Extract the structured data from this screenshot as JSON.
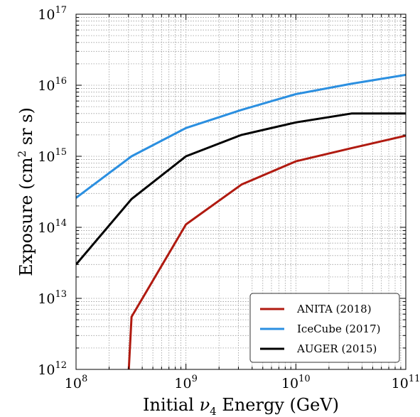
{
  "chart_data": {
    "type": "line",
    "xlabel": {
      "prefix": "Initial ",
      "symbol": "ν",
      "subscript": "4",
      "suffix": " Energy (GeV)"
    },
    "ylabel": {
      "prefix": "Exposure (cm",
      "superscript": "2",
      "suffix": "  sr s)"
    },
    "xscale": "log",
    "yscale": "log",
    "xlim": [
      100000000.0,
      100000000000.0
    ],
    "ylim": [
      1000000000000.0,
      1e+17
    ],
    "xticks": [
      {
        "value": 100000000.0,
        "base": "10",
        "exp": "8"
      },
      {
        "value": 1000000000.0,
        "base": "10",
        "exp": "9"
      },
      {
        "value": 10000000000.0,
        "base": "10",
        "exp": "10"
      },
      {
        "value": 100000000000.0,
        "base": "10",
        "exp": "11"
      }
    ],
    "yticks": [
      {
        "value": 1000000000000.0,
        "base": "10",
        "exp": "12"
      },
      {
        "value": 10000000000000.0,
        "base": "10",
        "exp": "13"
      },
      {
        "value": 100000000000000.0,
        "base": "10",
        "exp": "14"
      },
      {
        "value": 1000000000000000.0,
        "base": "10",
        "exp": "15"
      },
      {
        "value": 1e+16,
        "base": "10",
        "exp": "16"
      },
      {
        "value": 1e+17,
        "base": "10",
        "exp": "17"
      }
    ],
    "grid": "major and minor, dotted",
    "legend_position": "lower-right",
    "series": [
      {
        "name": "ANITA (2018)",
        "color": "#b01a10",
        "x": [
          290000000.0,
          320000000.0,
          1000000000.0,
          3200000000.0,
          10000000000.0,
          32000000000.0,
          100000000000.0
        ],
        "y": [
          300000000000.0,
          5500000000000.0,
          110000000000000.0,
          400000000000000.0,
          850000000000000.0,
          1300000000000000.0,
          1950000000000000.0
        ]
      },
      {
        "name": "IceCube (2017)",
        "color": "#2b8fe0",
        "x": [
          100000000.0,
          320000000.0,
          1000000000.0,
          3200000000.0,
          10000000000.0,
          32000000000.0,
          100000000000.0
        ],
        "y": [
          260000000000000.0,
          1000000000000000.0,
          2500000000000000.0,
          4500000000000000.0,
          7500000000000000.0,
          1.05e+16,
          1.4e+16
        ]
      },
      {
        "name": "AUGER (2015)",
        "color": "#000000",
        "x": [
          100000000.0,
          320000000.0,
          1000000000.0,
          3200000000.0,
          10000000000.0,
          32000000000.0,
          100000000000.0
        ],
        "y": [
          30000000000000.0,
          250000000000000.0,
          1000000000000000.0,
          2000000000000000.0,
          3000000000000000.0,
          4000000000000000.0,
          4000000000000000.0
        ]
      }
    ]
  }
}
